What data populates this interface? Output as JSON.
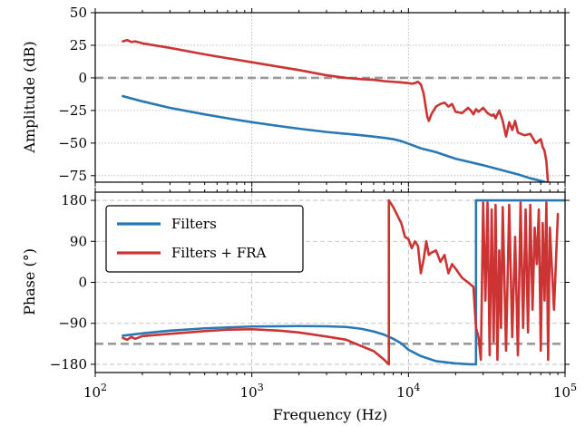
{
  "chart_data": [
    {
      "type": "line",
      "ylabel": "Amplitude (dB)",
      "xscale": "log",
      "xlim": [
        100,
        100000
      ],
      "ylim": [
        -80,
        50
      ],
      "yticks": [
        50,
        25,
        0,
        -25,
        -50,
        -75
      ],
      "ytick_labels": [
        "50",
        "25",
        "0",
        "−25",
        "−50",
        "−75"
      ],
      "grid": "dotted",
      "reference_line_y": 0,
      "series": [
        {
          "key": "filters",
          "color": "#2878b5",
          "x": [
            150,
            200,
            300,
            500,
            700,
            1000,
            1500,
            2000,
            3000,
            5000,
            7000,
            8000,
            9000,
            10000,
            12000,
            15000,
            20000,
            30000,
            40000,
            50000,
            60000,
            70000,
            80000
          ],
          "y": [
            -14,
            -18,
            -23,
            -28,
            -31,
            -34,
            -37,
            -39,
            -41.5,
            -44,
            -46,
            -47,
            -48.5,
            -50.5,
            -54,
            -57,
            -62,
            -67,
            -71,
            -74,
            -77,
            -79,
            -81
          ]
        },
        {
          "key": "filters_fra",
          "color": "#cc3333",
          "x": [
            150,
            160,
            170,
            180,
            200,
            300,
            500,
            1000,
            2000,
            3000,
            4000,
            5000,
            6000,
            7000,
            8000,
            9000,
            10000,
            10500,
            11000,
            11500,
            12000,
            12500,
            13000,
            13200,
            13500,
            14000,
            15000,
            16000,
            17000,
            18000,
            19000,
            20000,
            22000,
            24000,
            25000,
            26000,
            27000,
            28000,
            30000,
            32000,
            34000,
            35000,
            36000,
            38000,
            40000,
            42000,
            44000,
            46000,
            48000,
            50000,
            55000,
            60000,
            65000,
            70000,
            72000,
            74000,
            76000,
            78000
          ],
          "y": [
            28,
            29,
            27.5,
            28,
            26.5,
            23,
            18,
            12,
            6,
            2,
            0,
            -1,
            -1.5,
            -2.5,
            -3,
            -3.5,
            -4,
            -4.5,
            -4,
            -3,
            -5,
            -12,
            -25,
            -30,
            -33,
            -28,
            -22,
            -20,
            -19,
            -22,
            -20,
            -26,
            -27,
            -23,
            -25,
            -28,
            -24,
            -26,
            -23,
            -27,
            -29,
            -28,
            -31,
            -25,
            -33,
            -45,
            -34,
            -40,
            -33,
            -42,
            -44,
            -43,
            -50,
            -47,
            -53,
            -56,
            -64,
            -82
          ]
        }
      ]
    },
    {
      "type": "line",
      "xlabel": "Frequency (Hz)",
      "ylabel": "Phase (°)",
      "xscale": "log",
      "xlim": [
        100,
        100000
      ],
      "ylim": [
        -198,
        198
      ],
      "xtick_bases": [
        "10",
        "10",
        "10",
        "10"
      ],
      "xtick_exponents": [
        "2",
        "3",
        "4",
        "5"
      ],
      "yticks": [
        180,
        90,
        0,
        -90,
        -180
      ],
      "ytick_labels": [
        "180",
        "90",
        "0",
        "−90",
        "−180"
      ],
      "grid": "dashed",
      "reference_line_y": -135,
      "legend": {
        "position": "upper-left",
        "entries": [
          "Filters",
          "Filters + FRA"
        ]
      },
      "series": [
        {
          "key": "filters",
          "color": "#2878b5",
          "x": [
            150,
            200,
            300,
            500,
            700,
            1000,
            2000,
            3000,
            4000,
            5000,
            6000,
            7000,
            8000,
            9000,
            10000,
            12000,
            15000,
            20000,
            25000,
            27000,
            27000,
            30000,
            50000,
            100000
          ],
          "y": [
            -117,
            -112,
            -106,
            -101,
            -99,
            -97,
            -96,
            -96.5,
            -98,
            -102,
            -108,
            -115,
            -124,
            -134,
            -148,
            -162,
            -173,
            -178,
            -180,
            -180,
            180,
            180,
            180,
            180
          ]
        },
        {
          "key": "filters_fra",
          "color": "#cc3333",
          "x": [
            150,
            160,
            170,
            180,
            200,
            300,
            500,
            700,
            1000,
            1500,
            2000,
            3000,
            4000,
            5000,
            6000,
            7000,
            7500,
            7500,
            8000,
            9000,
            9500,
            10000,
            10500,
            11000,
            11500,
            12000,
            12500,
            13000,
            13500,
            14000,
            15000,
            16000,
            17000,
            18000,
            19000,
            20000,
            22000,
            24000,
            26000,
            27000,
            28000,
            29000,
            30000,
            31000,
            32000,
            33000,
            34000,
            35000,
            36000,
            37000,
            38000,
            39000,
            40000,
            42000,
            44000,
            46000,
            48000,
            50000,
            52000,
            54000,
            56000,
            58000,
            60000,
            62000,
            64000,
            66000,
            68000,
            70000,
            72000,
            74000,
            76000,
            78000,
            80000,
            85000,
            90000
          ],
          "y": [
            -122,
            -126,
            -120,
            -124,
            -118,
            -113,
            -107,
            -104,
            -103,
            -106,
            -110,
            -119,
            -126,
            -140,
            -151,
            -170,
            -180,
            180,
            165,
            130,
            100,
            95,
            75,
            90,
            80,
            20,
            50,
            90,
            60,
            65,
            70,
            45,
            60,
            20,
            40,
            30,
            10,
            0,
            -10,
            -100,
            -120,
            -170,
            175,
            -40,
            175,
            -160,
            160,
            -130,
            170,
            -170,
            70,
            -100,
            165,
            -150,
            170,
            -120,
            100,
            -160,
            175,
            -100,
            160,
            -110,
            170,
            -60,
            120,
            40,
            160,
            -150,
            130,
            -40,
            175,
            -170,
            120,
            -60,
            150
          ]
        }
      ]
    }
  ]
}
